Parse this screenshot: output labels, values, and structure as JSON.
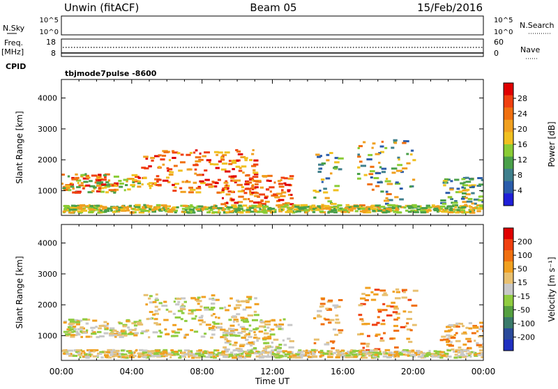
{
  "header": {
    "station": "Unwin (fitACF)",
    "beam": "Beam 05",
    "date": "15/Feb/2016"
  },
  "strip_labels": {
    "nsky": "N.Sky",
    "nsky_top": "10^5",
    "nsky_bottom": "10^0",
    "freq": "Freq.",
    "freq_unit": "[MHz]",
    "freq_top": "18",
    "freq_bottom": "8",
    "nsearch": "N.Search",
    "nsearch_top": "10^5",
    "nsearch_bottom": "10^0",
    "nave": "Nave",
    "nave_top": "60",
    "nave_bottom": "0",
    "cpid": "CPID",
    "cpid_value": "tbjmode7pulse -8600"
  },
  "chart_data": [
    {
      "type": "heatmap",
      "name": "power",
      "ylabel": "Slant Range [km]",
      "xlabel": "",
      "ylim": [
        200,
        4600
      ],
      "yticks": [
        "1000",
        "2000",
        "3000",
        "4000"
      ],
      "xlim": [
        0,
        24
      ],
      "colorbar": {
        "label": "Power [dB]",
        "ticks": [
          "4",
          "8",
          "12",
          "16",
          "20",
          "24",
          "28"
        ],
        "colors": [
          "#1f1fd8",
          "#2a5caa",
          "#3f7f8c",
          "#4aa04a",
          "#8acc35",
          "#f0c020",
          "#f0a020",
          "#f07010",
          "#f04010",
          "#e00000"
        ]
      }
    },
    {
      "type": "heatmap",
      "name": "velocity",
      "ylabel": "Slant Range [km]",
      "xlabel": "Time UT",
      "ylim": [
        200,
        4600
      ],
      "yticks": [
        "1000",
        "2000",
        "3000",
        "4000"
      ],
      "xlim": [
        0,
        24
      ],
      "xticks": [
        "00:00",
        "04:00",
        "08:00",
        "12:00",
        "16:00",
        "20:00",
        "00:00"
      ],
      "colorbar": {
        "label": "Velocity [m s⁻¹]",
        "ticks": [
          "200",
          "100",
          "50",
          "15",
          "-15",
          "-50",
          "-100",
          "-200"
        ],
        "colors": [
          "#2030c0",
          "#2a4a9a",
          "#3a7a6a",
          "#55a040",
          "#90cc40",
          "#c8c8c8",
          "#e8c070",
          "#f0a020",
          "#f07010",
          "#f04010",
          "#e00000"
        ]
      }
    }
  ]
}
